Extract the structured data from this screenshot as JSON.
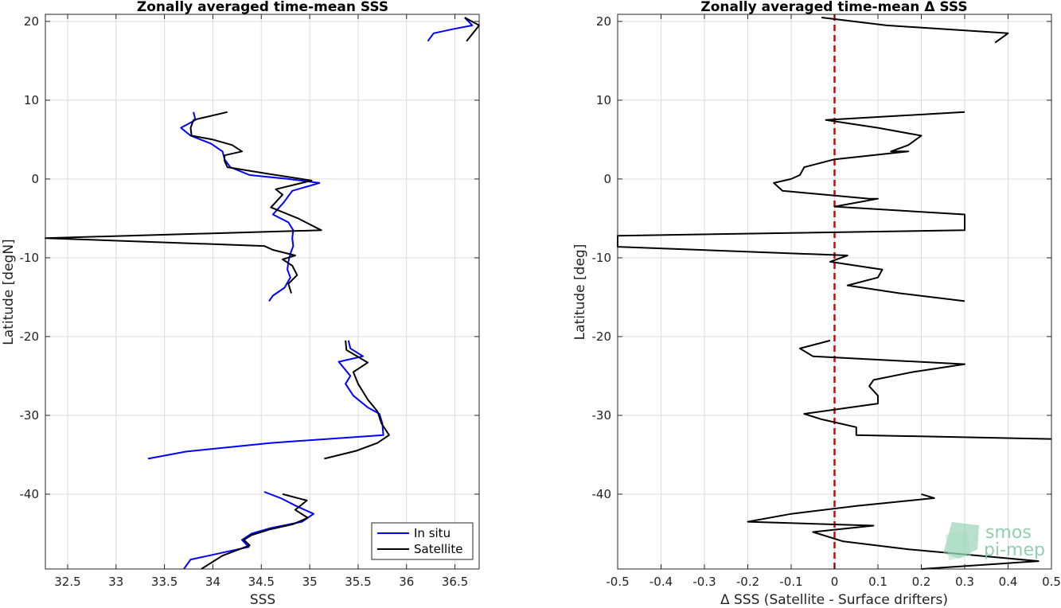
{
  "chart_data": [
    {
      "type": "line",
      "title": "Zonally averaged time-mean SSS",
      "xlabel": "SSS",
      "ylabel": "Latitude [degN]",
      "xlim": [
        32.27,
        36.75
      ],
      "ylim": [
        -49.5,
        20.9
      ],
      "xticks": [
        32.5,
        33,
        33.5,
        34,
        34.5,
        35,
        35.5,
        36,
        36.5
      ],
      "xtick_labels": [
        "32.5",
        "33",
        "33.5",
        "34",
        "34.5",
        "35",
        "35.5",
        "36",
        "36.5"
      ],
      "yticks": [
        -40,
        -30,
        -20,
        -10,
        0,
        10,
        20
      ],
      "ytick_labels": [
        "-40",
        "-30",
        "-20",
        "-10",
        "0",
        "10",
        "20"
      ],
      "grid": true,
      "legend": {
        "position": "bottom-right",
        "entries": [
          "In situ",
          "Satellite"
        ]
      },
      "series": [
        {
          "name": "In situ",
          "color": "#0000ff",
          "segments": [
            [
              [
                36.6,
                20.5
              ],
              [
                36.68,
                19.5
              ],
              [
                36.47,
                19.0
              ],
              [
                36.28,
                18.5
              ],
              [
                36.22,
                17.5
              ]
            ],
            [
              [
                33.8,
                8.5
              ],
              [
                33.82,
                7.5
              ],
              [
                33.67,
                6.5
              ],
              [
                33.77,
                5.5
              ],
              [
                33.98,
                4.5
              ],
              [
                34.1,
                3.5
              ],
              [
                34.12,
                2.5
              ],
              [
                34.18,
                1.5
              ],
              [
                34.38,
                0.5
              ],
              [
                34.78,
                0.0
              ],
              [
                35.1,
                -0.5
              ],
              [
                34.82,
                -1.5
              ],
              [
                34.73,
                -3.0
              ],
              [
                34.62,
                -4.5
              ],
              [
                34.78,
                -5.5
              ],
              [
                34.83,
                -6.5
              ],
              [
                34.82,
                -7.5
              ],
              [
                34.83,
                -8.5
              ],
              [
                34.8,
                -9.5
              ],
              [
                34.78,
                -10.5
              ],
              [
                34.77,
                -11.5
              ],
              [
                34.8,
                -12.5
              ],
              [
                34.74,
                -13.8
              ],
              [
                34.62,
                -14.8
              ],
              [
                34.58,
                -15.5
              ]
            ]
          ]
        },
        {
          "name": "In situ",
          "color": "#0000ff",
          "segments": [
            [
              [
                35.4,
                -20.5
              ],
              [
                35.42,
                -21.5
              ],
              [
                35.55,
                -22.5
              ],
              [
                35.3,
                -23.2
              ],
              [
                35.42,
                -25.0
              ],
              [
                35.37,
                -26.0
              ],
              [
                35.45,
                -27.5
              ],
              [
                35.6,
                -29.0
              ],
              [
                35.72,
                -29.8
              ],
              [
                35.75,
                -31.0
              ],
              [
                35.76,
                -32.5
              ],
              [
                34.6,
                -33.5
              ],
              [
                33.72,
                -34.6
              ],
              [
                33.33,
                -35.5
              ]
            ]
          ]
        },
        {
          "name": "In situ",
          "color": "#0000ff",
          "segments": [
            [
              [
                34.53,
                -39.7
              ],
              [
                34.7,
                -40.5
              ],
              [
                34.86,
                -41.5
              ],
              [
                35.04,
                -42.5
              ],
              [
                34.92,
                -43.5
              ],
              [
                34.6,
                -44.3
              ],
              [
                34.4,
                -45.0
              ],
              [
                34.3,
                -45.8
              ],
              [
                34.37,
                -46.7
              ],
              [
                33.77,
                -48.3
              ],
              [
                33.7,
                -49.5
              ]
            ]
          ]
        },
        {
          "name": "Satellite",
          "color": "#000000",
          "segments": [
            [
              [
                36.6,
                20.5
              ],
              [
                36.75,
                19.5
              ],
              [
                36.62,
                17.5
              ]
            ],
            [
              [
                34.15,
                8.5
              ],
              [
                33.8,
                7.5
              ],
              [
                33.77,
                6.5
              ],
              [
                33.78,
                5.5
              ],
              [
                34.0,
                5.0
              ],
              [
                34.2,
                4.3
              ],
              [
                34.3,
                3.5
              ],
              [
                34.12,
                3.0
              ],
              [
                34.12,
                2.3
              ],
              [
                34.15,
                1.5
              ],
              [
                34.55,
                0.7
              ],
              [
                35.02,
                -0.2
              ],
              [
                34.65,
                -1.3
              ],
              [
                34.72,
                -2.0
              ],
              [
                34.6,
                -3.6
              ],
              [
                34.88,
                -5.0
              ],
              [
                35.12,
                -6.5
              ],
              [
                32.27,
                -7.5
              ],
              [
                34.53,
                -8.5
              ],
              [
                34.62,
                -9.0
              ],
              [
                34.85,
                -9.7
              ],
              [
                34.72,
                -10.2
              ],
              [
                34.82,
                -11.0
              ],
              [
                34.87,
                -12.2
              ],
              [
                34.78,
                -13.3
              ],
              [
                34.81,
                -14.5
              ]
            ]
          ]
        },
        {
          "name": "Satellite",
          "color": "#000000",
          "segments": [
            [
              [
                35.37,
                -20.5
              ],
              [
                35.38,
                -21.7
              ],
              [
                35.6,
                -23.3
              ],
              [
                35.45,
                -24.5
              ],
              [
                35.5,
                -26.0
              ],
              [
                35.6,
                -28.0
              ],
              [
                35.7,
                -29.5
              ],
              [
                35.74,
                -31.0
              ],
              [
                35.82,
                -32.5
              ],
              [
                35.7,
                -33.5
              ],
              [
                35.48,
                -34.5
              ],
              [
                35.15,
                -35.5
              ]
            ]
          ]
        },
        {
          "name": "Satellite",
          "color": "#000000",
          "segments": [
            [
              [
                34.72,
                -40.0
              ],
              [
                34.97,
                -40.8
              ],
              [
                34.85,
                -42.0
              ],
              [
                34.98,
                -43.0
              ],
              [
                34.83,
                -43.8
              ],
              [
                34.58,
                -44.5
              ],
              [
                34.4,
                -45.2
              ],
              [
                34.32,
                -45.8
              ],
              [
                34.38,
                -46.5
              ],
              [
                34.1,
                -47.8
              ],
              [
                33.88,
                -49.5
              ]
            ]
          ]
        }
      ]
    },
    {
      "type": "line",
      "title": "Zonally averaged time-mean Δ SSS",
      "xlabel": "Δ SSS (Satellite - Surface drifters)",
      "ylabel": "Latitude [deg]",
      "xlim": [
        -0.5,
        0.5
      ],
      "ylim": [
        -49.5,
        20.9
      ],
      "xticks": [
        -0.5,
        -0.4,
        -0.3,
        -0.2,
        -0.1,
        0,
        0.1,
        0.2,
        0.3,
        0.4,
        0.5
      ],
      "xtick_labels": [
        "-0.5",
        "-0.4",
        "-0.3",
        "-0.2",
        "-0.1",
        "0",
        "0.1",
        "0.2",
        "0.3",
        "0.4",
        "0.5"
      ],
      "yticks": [
        -40,
        -30,
        -20,
        -10,
        0,
        10,
        20
      ],
      "ytick_labels": [
        "-40",
        "-30",
        "-20",
        "-10",
        "0",
        "10",
        "20"
      ],
      "grid": true,
      "reference_line": {
        "x": 0,
        "color": "#e00000",
        "style": "dashed"
      },
      "series": [
        {
          "name": "",
          "color": "#000000",
          "segments": [
            [
              [
                -0.03,
                20.5
              ],
              [
                0.12,
                19.5
              ],
              [
                0.4,
                18.5
              ],
              [
                0.37,
                17.3
              ]
            ],
            [
              [
                0.3,
                8.5
              ],
              [
                -0.02,
                7.5
              ],
              [
                0.1,
                6.5
              ],
              [
                0.2,
                5.5
              ],
              [
                0.17,
                4.3
              ],
              [
                0.13,
                3.5
              ],
              [
                0.17,
                3.5
              ],
              [
                0.0,
                2.5
              ],
              [
                -0.07,
                1.5
              ],
              [
                -0.08,
                0.5
              ],
              [
                -0.1,
                0.0
              ],
              [
                -0.14,
                -0.5
              ],
              [
                -0.12,
                -1.5
              ],
              [
                0.08,
                -2.5
              ],
              [
                0.1,
                -2.5
              ],
              [
                0.0,
                -3.5
              ],
              [
                0.3,
                -4.5
              ],
              [
                0.3,
                -5.5
              ],
              [
                0.3,
                -6.5
              ],
              [
                -0.5,
                -7.2
              ],
              [
                -0.5,
                -8.6
              ],
              [
                0.03,
                -9.7
              ],
              [
                -0.01,
                -10.5
              ],
              [
                0.11,
                -11.5
              ],
              [
                0.1,
                -12.5
              ],
              [
                0.03,
                -13.5
              ],
              [
                0.15,
                -14.5
              ],
              [
                0.3,
                -15.5
              ]
            ]
          ]
        },
        {
          "name": "",
          "color": "#000000",
          "segments": [
            [
              [
                -0.01,
                -20.5
              ],
              [
                -0.08,
                -21.5
              ],
              [
                -0.05,
                -22.5
              ],
              [
                0.3,
                -23.5
              ],
              [
                0.18,
                -24.5
              ],
              [
                0.09,
                -25.5
              ],
              [
                0.08,
                -26.3
              ],
              [
                0.1,
                -27.5
              ],
              [
                0.1,
                -28.5
              ],
              [
                -0.07,
                -29.8
              ],
              [
                -0.03,
                -30.5
              ],
              [
                0.05,
                -31.5
              ],
              [
                0.05,
                -32.5
              ],
              [
                0.5,
                -33.0
              ]
            ]
          ]
        },
        {
          "name": "",
          "color": "#000000",
          "segments": [
            [
              [
                0.2,
                -40.0
              ],
              [
                0.23,
                -40.5
              ],
              [
                0.05,
                -41.5
              ],
              [
                -0.1,
                -42.5
              ],
              [
                -0.2,
                -43.5
              ],
              [
                0.09,
                -44.0
              ],
              [
                -0.05,
                -44.8
              ],
              [
                0.02,
                -46.0
              ],
              [
                0.17,
                -47.0
              ],
              [
                0.47,
                -48.5
              ],
              [
                0.2,
                -49.5
              ]
            ]
          ]
        }
      ]
    }
  ],
  "logo": {
    "line1": "smos",
    "line2": "pi-mep"
  }
}
